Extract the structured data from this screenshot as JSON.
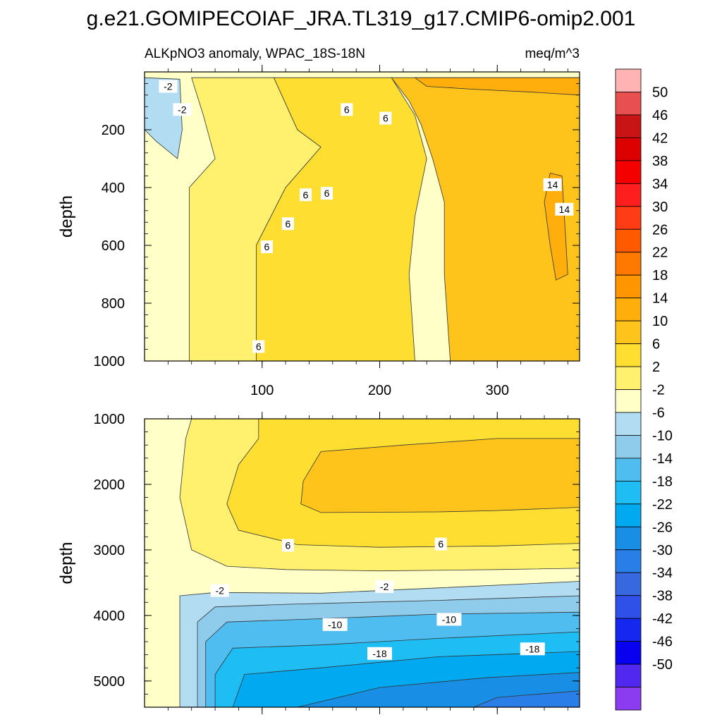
{
  "chart_data": {
    "type": "heatmap",
    "title": "g.e21.GOMIPECOIAF_JRA.TL319_g17.CMIP6-omip2.001",
    "subtitle_left": "ALKpNO3 anomaly, WPAC_18S-18N",
    "subtitle_right": "meq/m^3",
    "x": {
      "range": [
        0,
        370
      ],
      "ticks": [
        "100",
        "200",
        "300"
      ],
      "tick_values": [
        100,
        200,
        300
      ]
    },
    "panels": [
      {
        "name": "upper",
        "ylabel": "depth",
        "ylim": [
          0,
          1000
        ],
        "yticks": [
          "200",
          "400",
          "600",
          "800",
          "1000"
        ],
        "ytick_values": [
          200,
          400,
          600,
          800,
          1000
        ],
        "filled_regions": [
          {
            "level": "-6",
            "color": "#b2dcf2",
            "polygon": [
              [
                0,
                20
              ],
              [
                30,
                25
              ],
              [
                32,
                200
              ],
              [
                28,
                300
              ],
              [
                10,
                240
              ],
              [
                0,
                200
              ]
            ]
          },
          {
            "level": "2",
            "color": "#fff06e",
            "polygon": [
              [
                40,
                20
              ],
              [
                110,
                20
              ],
              [
                130,
                200
              ],
              [
                150,
                260
              ],
              [
                120,
                400
              ],
              [
                95,
                600
              ],
              [
                95,
                1000
              ],
              [
                38,
                1000
              ],
              [
                38,
                400
              ],
              [
                60,
                300
              ],
              [
                50,
                150
              ]
            ]
          },
          {
            "level": "6",
            "color": "#ffde32",
            "polygon": [
              [
                110,
                20
              ],
              [
                210,
                20
              ],
              [
                230,
                150
              ],
              [
                240,
                300
              ],
              [
                230,
                500
              ],
              [
                225,
                700
              ],
              [
                230,
                1000
              ],
              [
                95,
                1000
              ],
              [
                95,
                600
              ],
              [
                120,
                400
              ],
              [
                150,
                260
              ],
              [
                130,
                200
              ]
            ]
          },
          {
            "level": "10",
            "color": "#ffc41c",
            "polygon": [
              [
                210,
                20
              ],
              [
                370,
                20
              ],
              [
                370,
                1000
              ],
              [
                260,
                1000
              ],
              [
                255,
                700
              ],
              [
                255,
                450
              ],
              [
                245,
                300
              ],
              [
                235,
                180
              ],
              [
                225,
                100
              ]
            ]
          },
          {
            "level": "14",
            "color": "#ffae0c",
            "polygon": [
              [
                345,
                350
              ],
              [
                355,
                360
              ],
              [
                360,
                700
              ],
              [
                350,
                720
              ],
              [
                345,
                600
              ],
              [
                340,
                450
              ]
            ]
          },
          {
            "level": "14",
            "color": "#ffae0c",
            "polygon": [
              [
                230,
                20
              ],
              [
                370,
                20
              ],
              [
                370,
                80
              ],
              [
                330,
                70
              ],
              [
                280,
                60
              ],
              [
                240,
                50
              ]
            ]
          }
        ],
        "contour_labels": [
          {
            "text": "-2",
            "x": 20,
            "y": 50
          },
          {
            "text": "-2",
            "x": 32,
            "y": 130
          },
          {
            "text": "6",
            "x": 172,
            "y": 130
          },
          {
            "text": "6",
            "x": 205,
            "y": 160
          },
          {
            "text": "6",
            "x": 137,
            "y": 425
          },
          {
            "text": "6",
            "x": 155,
            "y": 420
          },
          {
            "text": "6",
            "x": 122,
            "y": 525
          },
          {
            "text": "6",
            "x": 104,
            "y": 605
          },
          {
            "text": "6",
            "x": 97,
            "y": 950
          },
          {
            "text": "14",
            "x": 347,
            "y": 390
          },
          {
            "text": "14",
            "x": 357,
            "y": 475
          }
        ]
      },
      {
        "name": "lower",
        "ylabel": "depth",
        "ylim": [
          1000,
          5400
        ],
        "yticks": [
          "1000",
          "2000",
          "3000",
          "4000",
          "5000"
        ],
        "ytick_values": [
          1000,
          2000,
          3000,
          4000,
          5000
        ],
        "filled_regions": [
          {
            "level": "2",
            "color": "#fff06e",
            "polygon": [
              [
                40,
                1000
              ],
              [
                370,
                1000
              ],
              [
                370,
                3280
              ],
              [
                300,
                3300
              ],
              [
                200,
                3320
              ],
              [
                120,
                3300
              ],
              [
                70,
                3250
              ],
              [
                40,
                3000
              ],
              [
                30,
                2200
              ],
              [
                35,
                1300
              ]
            ]
          },
          {
            "level": "6",
            "color": "#ffde32",
            "polygon": [
              [
                97,
                1000
              ],
              [
                370,
                1000
              ],
              [
                370,
                2900
              ],
              [
                300,
                2940
              ],
              [
                200,
                2960
              ],
              [
                130,
                2920
              ],
              [
                80,
                2700
              ],
              [
                70,
                2300
              ],
              [
                80,
                1700
              ],
              [
                97,
                1300
              ]
            ]
          },
          {
            "level": "10",
            "color": "#ffc41c",
            "polygon": [
              [
                135,
                1950
              ],
              [
                150,
                1500
              ],
              [
                220,
                1400
              ],
              [
                300,
                1300
              ],
              [
                370,
                1300
              ],
              [
                370,
                2350
              ],
              [
                300,
                2400
              ],
              [
                250,
                2420
              ],
              [
                150,
                2430
              ],
              [
                133,
                2300
              ]
            ]
          },
          {
            "level": "-6",
            "color": "#b2dcf2",
            "polygon": [
              [
                30,
                3700
              ],
              [
                60,
                3650
              ],
              [
                150,
                3660
              ],
              [
                250,
                3580
              ],
              [
                370,
                3480
              ],
              [
                370,
                5400
              ],
              [
                30,
                5400
              ]
            ]
          },
          {
            "level": "-10",
            "color": "#8fccec",
            "polygon": [
              [
                45,
                4100
              ],
              [
                60,
                3870
              ],
              [
                120,
                3830
              ],
              [
                250,
                3770
              ],
              [
                370,
                3700
              ],
              [
                370,
                5400
              ],
              [
                45,
                5400
              ]
            ]
          },
          {
            "level": "-14",
            "color": "#50bdf0",
            "polygon": [
              [
                52,
                4400
              ],
              [
                70,
                4100
              ],
              [
                150,
                4050
              ],
              [
                250,
                3980
              ],
              [
                370,
                3950
              ],
              [
                370,
                5400
              ],
              [
                52,
                5400
              ]
            ]
          },
          {
            "level": "-18",
            "color": "#1ebef5",
            "polygon": [
              [
                60,
                4900
              ],
              [
                75,
                4500
              ],
              [
                150,
                4450
              ],
              [
                250,
                4350
              ],
              [
                370,
                4250
              ],
              [
                370,
                5400
              ],
              [
                60,
                5400
              ]
            ]
          },
          {
            "level": "-22",
            "color": "#00a9f0",
            "polygon": [
              [
                75,
                5400
              ],
              [
                85,
                4900
              ],
              [
                150,
                4800
              ],
              [
                250,
                4630
              ],
              [
                370,
                4550
              ],
              [
                370,
                5400
              ]
            ]
          },
          {
            "level": "-26",
            "color": "#188ee4",
            "polygon": [
              [
                130,
                5400
              ],
              [
                200,
                5100
              ],
              [
                290,
                4950
              ],
              [
                370,
                4870
              ],
              [
                370,
                5400
              ]
            ]
          },
          {
            "level": "-30",
            "color": "#2a7ee8",
            "polygon": [
              [
                280,
                5400
              ],
              [
                300,
                5250
              ],
              [
                370,
                5150
              ],
              [
                370,
                5400
              ]
            ]
          }
        ],
        "contour_labels": [
          {
            "text": "6",
            "x": 122,
            "y": 2930
          },
          {
            "text": "6",
            "x": 252,
            "y": 2910
          },
          {
            "text": "-2",
            "x": 64,
            "y": 3620
          },
          {
            "text": "-2",
            "x": 204,
            "y": 3560
          },
          {
            "text": "-10",
            "x": 162,
            "y": 4140
          },
          {
            "text": "-10",
            "x": 259,
            "y": 4060
          },
          {
            "text": "-18",
            "x": 200,
            "y": 4580
          },
          {
            "text": "-18",
            "x": 330,
            "y": 4510
          }
        ]
      }
    ],
    "colorbar": {
      "labels": [
        "50",
        "46",
        "42",
        "38",
        "34",
        "30",
        "26",
        "22",
        "18",
        "14",
        "10",
        "6",
        "2",
        "-2",
        "-6",
        "-10",
        "-14",
        "-18",
        "-22",
        "-26",
        "-30",
        "-34",
        "-38",
        "-42",
        "-46",
        "-50"
      ],
      "colors": [
        "#ffb3b3",
        "#e85050",
        "#c81414",
        "#dd0000",
        "#f40000",
        "#ff1e1e",
        "#ff3c14",
        "#ff5a00",
        "#ff7800",
        "#ff9600",
        "#ffae0c",
        "#ffc41c",
        "#ffde32",
        "#fff06e",
        "#ffffc8",
        "#b2dcf2",
        "#8fccec",
        "#50bdf0",
        "#1ebef5",
        "#00a9f0",
        "#188ee4",
        "#2a7ee8",
        "#3868e0",
        "#3050ea",
        "#1428f0",
        "#0a00f0",
        "#5028f0",
        "#8c3cf0"
      ]
    }
  }
}
